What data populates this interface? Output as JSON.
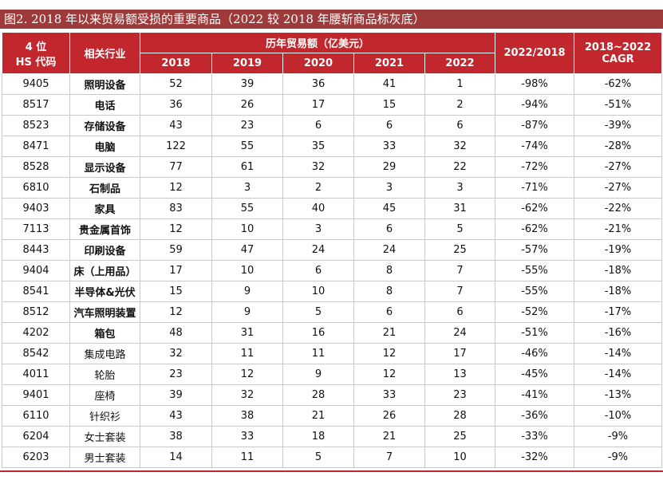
{
  "title": "图2. 2018 年以来贸易额受损的重要商品（2022 较 2018 年腰斩商品标灰底）",
  "table": {
    "header": {
      "code": [
        "4 位",
        "HS 代码"
      ],
      "industry": "相关行业",
      "group": "历年贸易额（亿美元）",
      "years": [
        "2018",
        "2019",
        "2020",
        "2021",
        "2022"
      ],
      "ratio": "2022/2018",
      "cagr": [
        "2018~2022",
        "CAGR"
      ]
    },
    "rows": [
      [
        "9405",
        "照明设备",
        "52",
        "39",
        "36",
        "41",
        "1",
        "-98%",
        "-62%"
      ],
      [
        "8517",
        "电话",
        "36",
        "26",
        "17",
        "15",
        "2",
        "-94%",
        "-51%"
      ],
      [
        "8523",
        "存储设备",
        "43",
        "23",
        "6",
        "6",
        "6",
        "-87%",
        "-39%"
      ],
      [
        "8471",
        "电脑",
        "122",
        "55",
        "35",
        "33",
        "32",
        "-74%",
        "-28%"
      ],
      [
        "8528",
        "显示设备",
        "77",
        "61",
        "32",
        "29",
        "22",
        "-72%",
        "-27%"
      ],
      [
        "6810",
        "石制品",
        "12",
        "3",
        "2",
        "3",
        "3",
        "-71%",
        "-27%"
      ],
      [
        "9403",
        "家具",
        "83",
        "55",
        "40",
        "45",
        "31",
        "-62%",
        "-22%"
      ],
      [
        "7113",
        "贵金属首饰",
        "12",
        "10",
        "3",
        "6",
        "5",
        "-62%",
        "-21%"
      ],
      [
        "8443",
        "印刷设备",
        "59",
        "47",
        "24",
        "24",
        "25",
        "-57%",
        "-19%"
      ],
      [
        "9404",
        "床（上用品）",
        "17",
        "10",
        "6",
        "8",
        "7",
        "-55%",
        "-18%"
      ],
      [
        "8541",
        "半导体&光伏",
        "15",
        "9",
        "10",
        "8",
        "7",
        "-55%",
        "-18%"
      ],
      [
        "8512",
        "汽车照明装置",
        "12",
        "9",
        "5",
        "6",
        "6",
        "-52%",
        "-17%"
      ],
      [
        "4202",
        "箱包",
        "48",
        "31",
        "16",
        "21",
        "24",
        "-51%",
        "-16%"
      ],
      [
        "8542",
        "集成电路",
        "32",
        "11",
        "11",
        "12",
        "17",
        "-46%",
        "-14%"
      ],
      [
        "4011",
        "轮胎",
        "23",
        "12",
        "9",
        "12",
        "13",
        "-45%",
        "-14%"
      ],
      [
        "9401",
        "座椅",
        "39",
        "32",
        "28",
        "33",
        "23",
        "-41%",
        "-13%"
      ],
      [
        "6110",
        "针织衫",
        "43",
        "38",
        "21",
        "26",
        "28",
        "-36%",
        "-10%"
      ],
      [
        "6204",
        "女士套装",
        "38",
        "33",
        "18",
        "21",
        "25",
        "-33%",
        "-9%"
      ],
      [
        "6203",
        "男士套装",
        "14",
        "11",
        "5",
        "7",
        "10",
        "-32%",
        "-9%"
      ]
    ]
  }
}
